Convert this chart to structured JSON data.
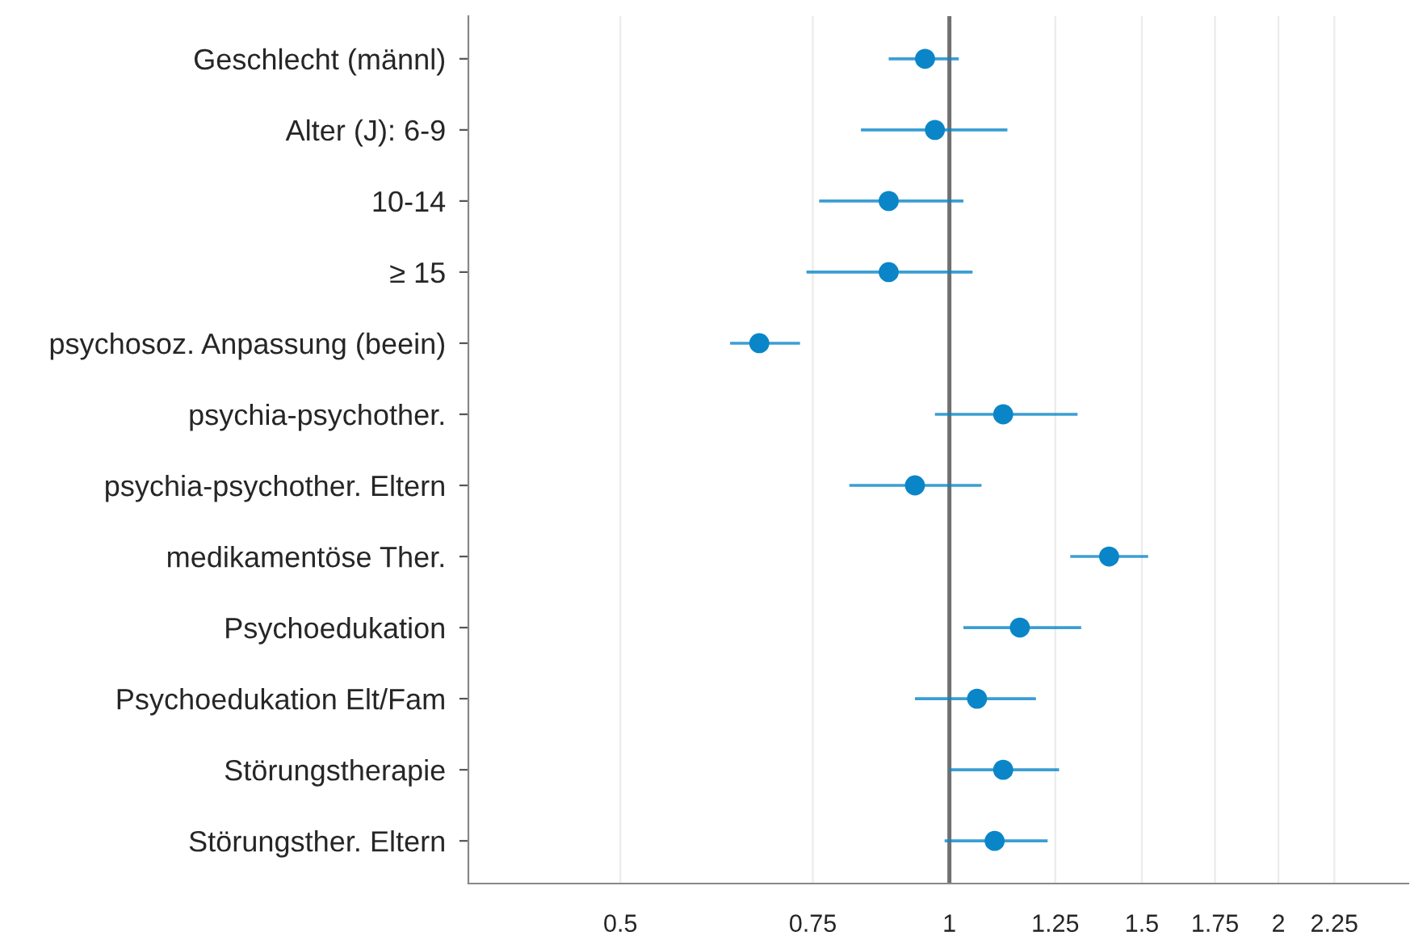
{
  "chart_data": {
    "type": "scatter",
    "orientation": "horizontal",
    "categories": [
      "Geschlecht (männl)",
      "Alter (J): 6-9",
      "10-14",
      "≥ 15",
      "psychosoz. Anpassung (beein)",
      "psychia-psychother.",
      "psychia-psychother. Eltern",
      "medikamentöse Ther.",
      "Psychoedukation",
      "Psychoedukation Elt/Fam",
      "Störungstherapie",
      "Störungsther. Eltern"
    ],
    "series": [
      {
        "color": "#0a86c8",
        "values": [
          0.95,
          0.97,
          0.88,
          0.88,
          0.67,
          1.12,
          0.93,
          1.4,
          1.16,
          1.06,
          1.12,
          1.1
        ],
        "errors": [
          [
            0.88,
            1.02
          ],
          [
            0.83,
            1.13
          ],
          [
            0.76,
            1.03
          ],
          [
            0.74,
            1.05
          ],
          [
            0.63,
            0.73
          ],
          [
            0.97,
            1.31
          ],
          [
            0.81,
            1.07
          ],
          [
            1.29,
            1.52
          ],
          [
            1.03,
            1.32
          ],
          [
            0.93,
            1.2
          ],
          [
            1.0,
            1.26
          ],
          [
            0.99,
            1.23
          ]
        ]
      }
    ],
    "log": "x",
    "xlim": [
      0.363,
      2.63
    ],
    "xticks": [
      0.5,
      0.75,
      1,
      1.25,
      1.5,
      1.75,
      2,
      2.25
    ],
    "grid": "x",
    "marker": "circle",
    "ref_lines": [
      {
        "axis": "x",
        "value": 1,
        "color": "#707070"
      }
    ]
  }
}
